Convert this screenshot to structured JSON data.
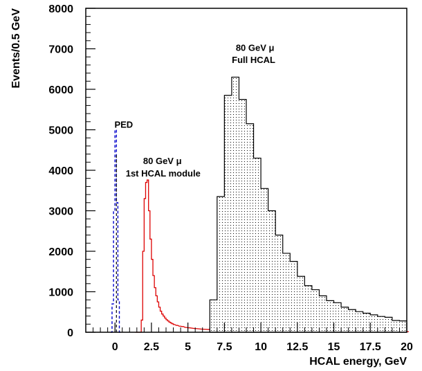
{
  "chart_data": {
    "type": "histogram",
    "xlabel": "HCAL energy, GeV",
    "ylabel": "Events/0.5 GeV",
    "xlim": [
      -2,
      20
    ],
    "ylim": [
      0,
      8000
    ],
    "x_ticks": [
      0,
      2.5,
      5,
      7.5,
      10,
      12.5,
      15,
      17.5,
      20
    ],
    "x_tick_labels": [
      "0",
      "2.5",
      "5",
      "7.5",
      "10",
      "12.5",
      "15",
      "17.5",
      "20"
    ],
    "y_ticks": [
      0,
      1000,
      2000,
      3000,
      4000,
      5000,
      6000,
      7000,
      8000
    ],
    "y_tick_labels": [
      "0",
      "1000",
      "2000",
      "3000",
      "4000",
      "5000",
      "6000",
      "7000",
      "8000"
    ],
    "grid": false,
    "colors": {
      "ped": "#0000cc",
      "module": "#dd0000",
      "full": "#000000"
    },
    "series": [
      {
        "name": "PED",
        "style": "dashed",
        "bin_width": 0.1,
        "x": [
          -0.3,
          -0.2,
          -0.1,
          0.0,
          0.1,
          0.2,
          0.3
        ],
        "values": [
          0,
          700,
          3000,
          5000,
          3200,
          800,
          0
        ]
      },
      {
        "name": "80 GeV μ 1st HCAL module",
        "style": "step",
        "bin_width": 0.1,
        "x": [
          1.4,
          1.5,
          1.6,
          1.7,
          1.8,
          1.9,
          2.0,
          2.1,
          2.2,
          2.3,
          2.4,
          2.5,
          2.6,
          2.7,
          2.8,
          2.9,
          3.0,
          3.1,
          3.2,
          3.3,
          3.4,
          3.5,
          3.6,
          3.7,
          3.8,
          3.9,
          4.0,
          4.2,
          4.4,
          4.6,
          4.8,
          5.0,
          5.5,
          6.0,
          6.5,
          7.0,
          8.0,
          9.0,
          10.0,
          12.0,
          14.0,
          16.0,
          18.0,
          20.0
        ],
        "values": [
          0,
          0,
          0,
          0,
          300,
          2000,
          3300,
          3700,
          3760,
          3000,
          2300,
          1800,
          1400,
          1100,
          900,
          750,
          620,
          520,
          450,
          400,
          350,
          310,
          280,
          250,
          230,
          210,
          190,
          170,
          150,
          140,
          120,
          110,
          90,
          75,
          65,
          55,
          45,
          40,
          35,
          30,
          25,
          20,
          18,
          15
        ]
      },
      {
        "name": "80 GeV μ Full HCAL",
        "style": "filled-dotted",
        "bin_width": 0.5,
        "x": [
          6.5,
          7.0,
          7.5,
          8.0,
          8.5,
          9.0,
          9.5,
          10.0,
          10.5,
          11.0,
          11.5,
          12.0,
          12.5,
          13.0,
          13.5,
          14.0,
          14.5,
          15.0,
          15.5,
          16.0,
          16.5,
          17.0,
          17.5,
          18.0,
          18.5,
          19.0,
          19.5
        ],
        "values": [
          800,
          3350,
          5850,
          6300,
          5750,
          5150,
          4300,
          3550,
          3000,
          2400,
          1950,
          1750,
          1380,
          1150,
          1050,
          900,
          780,
          730,
          620,
          560,
          510,
          470,
          430,
          390,
          370,
          290,
          280
        ]
      }
    ],
    "annotations": [
      {
        "text": "PED",
        "x": 0.6,
        "y": 5050
      },
      {
        "text": "80 GeV μ",
        "x": 3.25,
        "y": 4150
      },
      {
        "text": "1st HCAL module",
        "x": 3.3,
        "y": 3850
      },
      {
        "text": "80 GeV μ",
        "x": 9.6,
        "y": 6950
      },
      {
        "text": "Full HCAL",
        "x": 9.5,
        "y": 6650
      }
    ]
  }
}
